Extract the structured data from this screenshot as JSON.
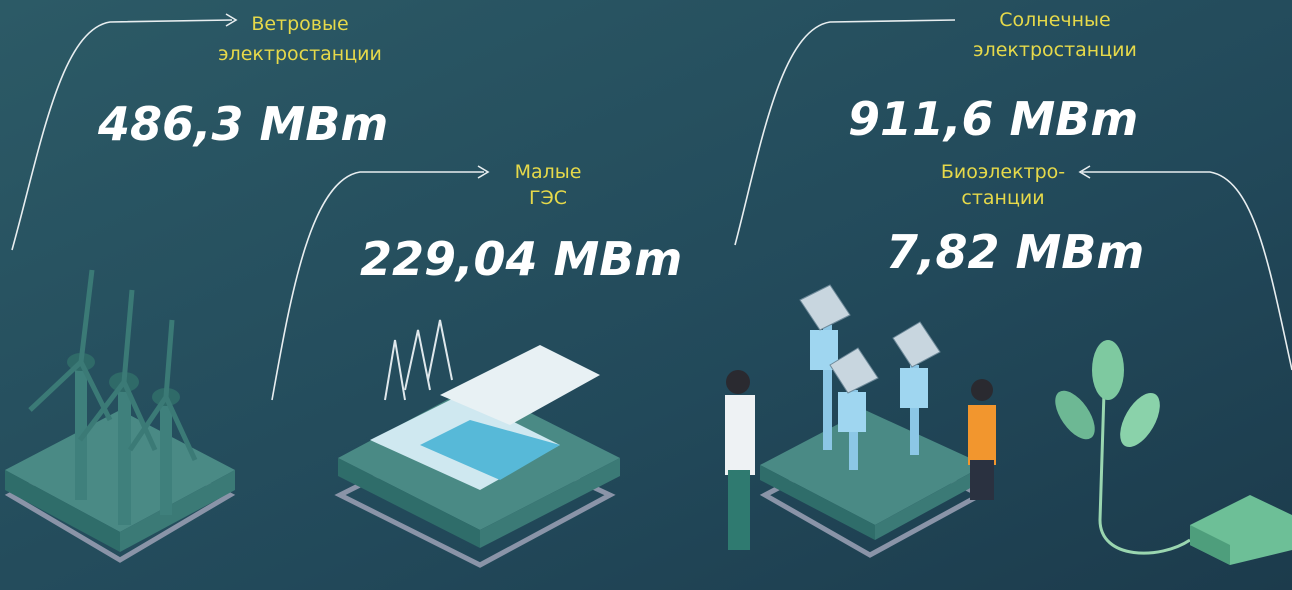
{
  "items": [
    {
      "label": [
        "Ветровые",
        "электростанции"
      ],
      "value": "486,3 MBm"
    },
    {
      "label": [
        "Малые",
        "ГЭС"
      ],
      "value": "229,04 MBm"
    },
    {
      "label": [
        "Солнечные",
        "электростанции"
      ],
      "value": "911,6 MBm"
    },
    {
      "label": [
        "Биоэлектро-",
        "станции"
      ],
      "value": "7,82 MBm"
    }
  ]
}
